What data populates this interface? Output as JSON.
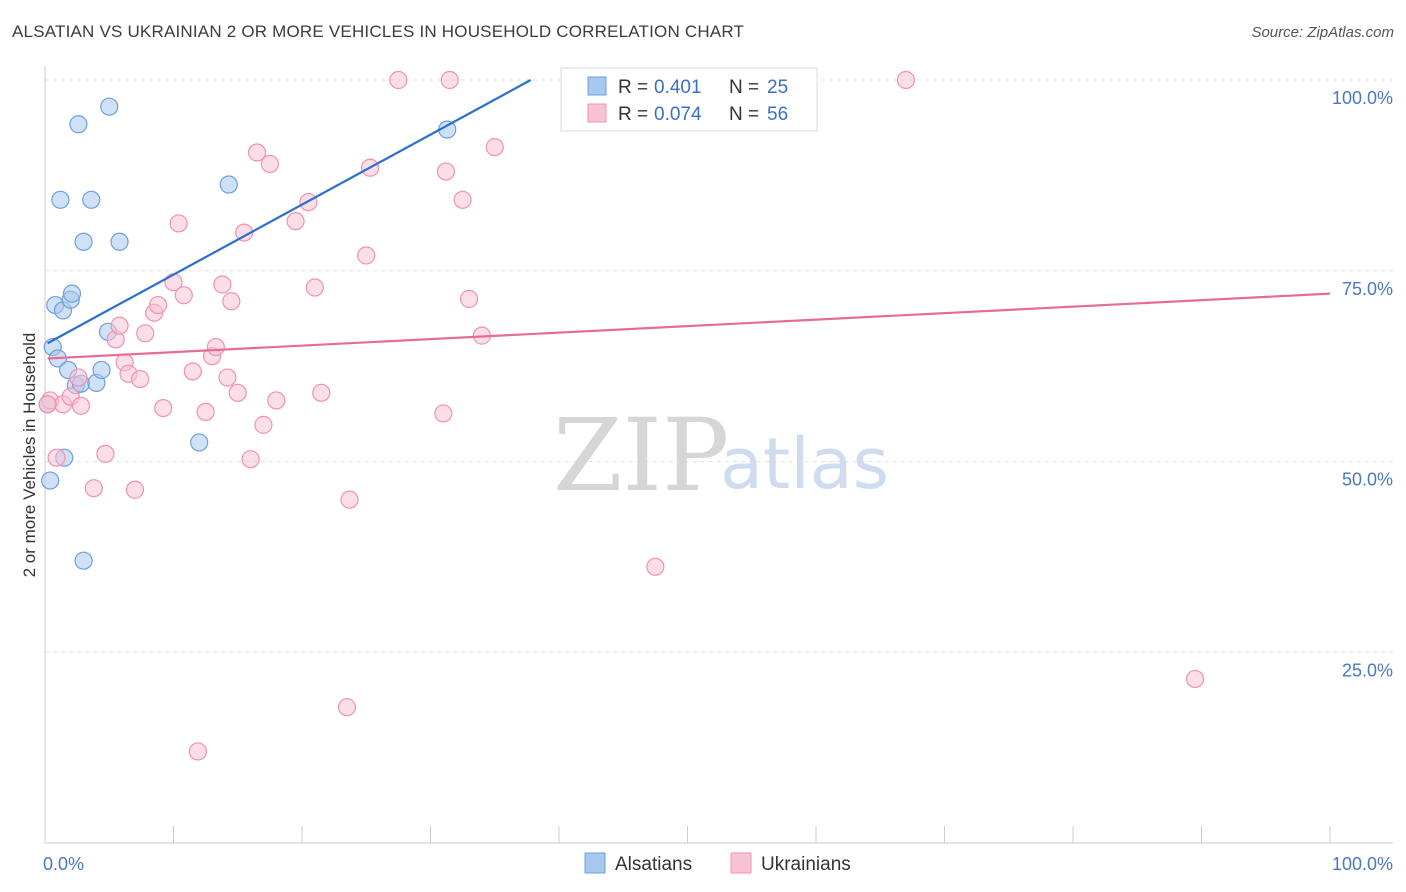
{
  "title": "ALSATIAN VS UKRAINIAN 2 OR MORE VEHICLES IN HOUSEHOLD CORRELATION CHART",
  "source": "Source: ZipAtlas.com",
  "watermark": {
    "zip": "ZIP",
    "atlas": "atlas"
  },
  "legend": {
    "r_label": "R =",
    "n_label": "N =",
    "rows": [
      {
        "r": "0.401",
        "n": "25"
      },
      {
        "r": "0.074",
        "n": "56"
      }
    ]
  },
  "chart_data": {
    "type": "scatter",
    "title": "ALSATIAN VS UKRAINIAN 2 OR MORE VEHICLES IN HOUSEHOLD CORRELATION CHART",
    "xlabel": "",
    "ylabel": "2 or more Vehicles in Household",
    "xlim": [
      0,
      100
    ],
    "ylim": [
      0,
      100
    ],
    "x_tick_labels": [
      "0.0%",
      "100.0%"
    ],
    "y_ticks": [
      25,
      50,
      75,
      100
    ],
    "y_tick_labels": [
      "25.0%",
      "50.0%",
      "75.0%",
      "100.0%"
    ],
    "grid": true,
    "legend_position": "top-center",
    "series": [
      {
        "name": "Alsatians",
        "color": "#a7c8ef",
        "stroke": "#6f9fdc",
        "line_color": "#2a6fd0",
        "trend": {
          "x0": 0.2,
          "y0": 65.5,
          "x1": 37.8,
          "y1": 100
        },
        "points": [
          [
            0.2,
            57.5
          ],
          [
            0.4,
            47.5
          ],
          [
            0.6,
            65.0
          ],
          [
            0.8,
            70.5
          ],
          [
            1.0,
            63.5
          ],
          [
            1.2,
            84.3
          ],
          [
            1.4,
            69.8
          ],
          [
            1.5,
            50.5
          ],
          [
            1.8,
            62.0
          ],
          [
            2.0,
            71.2
          ],
          [
            2.1,
            72.0
          ],
          [
            2.4,
            60.0
          ],
          [
            2.6,
            94.2
          ],
          [
            2.8,
            60.2
          ],
          [
            3.0,
            78.8
          ],
          [
            3.0,
            37.0
          ],
          [
            3.6,
            84.3
          ],
          [
            4.0,
            60.3
          ],
          [
            4.4,
            62.0
          ],
          [
            4.9,
            67.0
          ],
          [
            5.0,
            96.5
          ],
          [
            5.8,
            78.8
          ],
          [
            12.0,
            52.5
          ],
          [
            14.3,
            86.3
          ],
          [
            31.3,
            93.5
          ]
        ]
      },
      {
        "name": "Ukrainians",
        "color": "#f7c3d3",
        "stroke": "#ef93ae",
        "line_color": "#e56d95",
        "trend": {
          "x0": 0.2,
          "y0": 63.5,
          "x1": 100,
          "y1": 72.0
        },
        "points": [
          [
            0.4,
            58.0
          ],
          [
            0.9,
            50.5
          ],
          [
            1.4,
            57.5
          ],
          [
            2.0,
            58.5
          ],
          [
            2.6,
            61.0
          ],
          [
            2.8,
            57.3
          ],
          [
            3.8,
            46.5
          ],
          [
            4.7,
            51.0
          ],
          [
            5.5,
            66.0
          ],
          [
            5.8,
            67.8
          ],
          [
            6.2,
            63.0
          ],
          [
            6.5,
            61.5
          ],
          [
            7.0,
            46.3
          ],
          [
            7.4,
            60.8
          ],
          [
            7.8,
            66.8
          ],
          [
            8.5,
            69.5
          ],
          [
            8.8,
            70.5
          ],
          [
            9.2,
            57.0
          ],
          [
            10.0,
            73.5
          ],
          [
            10.4,
            81.2
          ],
          [
            10.8,
            71.8
          ],
          [
            11.5,
            61.8
          ],
          [
            11.9,
            12.0
          ],
          [
            12.5,
            56.5
          ],
          [
            13.0,
            63.8
          ],
          [
            13.3,
            65.0
          ],
          [
            13.8,
            73.2
          ],
          [
            14.2,
            61.0
          ],
          [
            14.5,
            71.0
          ],
          [
            15.0,
            59.0
          ],
          [
            15.5,
            80.0
          ],
          [
            16.0,
            50.3
          ],
          [
            16.5,
            90.5
          ],
          [
            17.0,
            54.8
          ],
          [
            17.5,
            89.0
          ],
          [
            18.0,
            58.0
          ],
          [
            19.5,
            81.5
          ],
          [
            20.5,
            84.0
          ],
          [
            21.0,
            72.8
          ],
          [
            21.5,
            59.0
          ],
          [
            23.5,
            17.8
          ],
          [
            23.7,
            45.0
          ],
          [
            25.0,
            77.0
          ],
          [
            25.3,
            88.5
          ],
          [
            27.5,
            100.0
          ],
          [
            31.0,
            56.3
          ],
          [
            31.2,
            88.0
          ],
          [
            31.5,
            100.0
          ],
          [
            32.5,
            84.3
          ],
          [
            33.0,
            71.3
          ],
          [
            34.0,
            66.5
          ],
          [
            35.0,
            91.2
          ],
          [
            47.5,
            36.2
          ],
          [
            67.0,
            100.0
          ],
          [
            89.5,
            21.5
          ],
          [
            0.2,
            57.5
          ]
        ]
      }
    ]
  }
}
